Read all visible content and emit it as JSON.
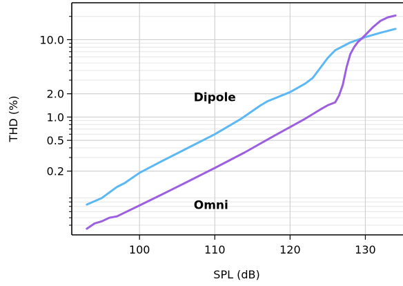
{
  "chart_data": {
    "type": "line",
    "xlabel": "SPL (dB)",
    "ylabel": "THD (%)",
    "xlim": [
      91,
      135
    ],
    "ylim": [
      0.03,
      30
    ],
    "y_scale": "log",
    "grid": true,
    "x_ticks": [
      {
        "value": 100,
        "label": "100"
      },
      {
        "value": 110,
        "label": "110"
      },
      {
        "value": 120,
        "label": "120"
      },
      {
        "value": 130,
        "label": "130"
      }
    ],
    "y_ticks": [
      {
        "value": 10,
        "label": "10.0"
      },
      {
        "value": 2,
        "label": "2.0"
      },
      {
        "value": 1,
        "label": "1.0"
      },
      {
        "value": 0.5,
        "label": "0.5"
      },
      {
        "value": 0.2,
        "label": "0.2"
      }
    ],
    "y_minor_ticks": [
      0.04,
      0.05,
      0.06,
      0.07,
      0.08,
      0.09,
      0.3,
      0.4,
      0.6,
      0.7,
      0.8,
      0.9,
      3,
      4,
      5,
      6,
      7,
      8,
      9,
      20
    ],
    "annotations": [
      {
        "text": "Dipole",
        "x": 110,
        "y": 1.6
      },
      {
        "text": "Omni",
        "x": 109.5,
        "y": 0.065
      }
    ],
    "series": [
      {
        "color": "#5bb8f5",
        "points": [
          [
            93,
            0.074
          ],
          [
            95,
            0.09
          ],
          [
            97,
            0.125
          ],
          [
            98,
            0.14
          ],
          [
            100,
            0.19
          ],
          [
            103,
            0.27
          ],
          [
            106,
            0.38
          ],
          [
            110,
            0.6
          ],
          [
            113.5,
            0.95
          ],
          [
            116,
            1.4
          ],
          [
            117,
            1.6
          ],
          [
            120,
            2.1
          ],
          [
            122,
            2.7
          ],
          [
            123,
            3.2
          ],
          [
            124,
            4.3
          ],
          [
            125,
            5.8
          ],
          [
            126,
            7.3
          ],
          [
            128,
            9.2
          ],
          [
            130,
            10.8
          ],
          [
            132,
            12.3
          ],
          [
            134,
            13.8
          ]
        ]
      },
      {
        "color": "#9b5fe0",
        "points": [
          [
            93,
            0.036
          ],
          [
            94,
            0.042
          ],
          [
            95,
            0.045
          ],
          [
            96,
            0.05
          ],
          [
            97,
            0.052
          ],
          [
            100,
            0.072
          ],
          [
            103,
            0.1
          ],
          [
            106,
            0.14
          ],
          [
            110,
            0.22
          ],
          [
            114,
            0.35
          ],
          [
            118,
            0.58
          ],
          [
            122,
            0.95
          ],
          [
            124,
            1.25
          ],
          [
            125,
            1.42
          ],
          [
            126,
            1.55
          ],
          [
            126.5,
            1.9
          ],
          [
            127,
            2.6
          ],
          [
            127.5,
            4.4
          ],
          [
            128,
            6.5
          ],
          [
            128.5,
            8.0
          ],
          [
            129,
            9.3
          ],
          [
            129.5,
            10.3
          ],
          [
            130,
            11.5
          ],
          [
            131,
            14.5
          ],
          [
            132,
            17.5
          ],
          [
            133,
            19.5
          ],
          [
            134,
            20.5
          ]
        ]
      }
    ]
  }
}
